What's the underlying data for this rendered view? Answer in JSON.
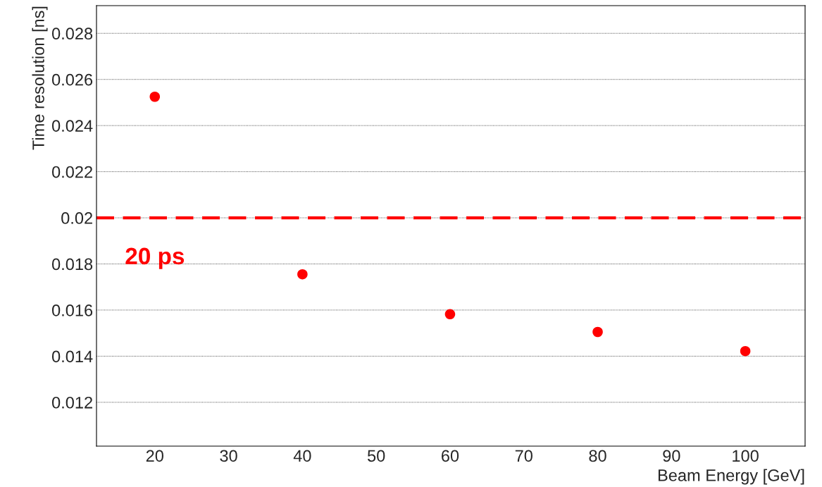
{
  "chart_data": {
    "type": "scatter",
    "xlabel": "Beam Energy [GeV]",
    "ylabel": "Time resolution [ns]",
    "x": [
      20,
      40,
      60,
      80,
      100
    ],
    "series": [
      {
        "color": "#ff0000",
        "values": [
          0.02525,
          0.01755,
          0.01582,
          0.01505,
          0.01422
        ]
      }
    ],
    "marker": "circle",
    "xlim": [
      12.1,
      108.1
    ],
    "xticks": [
      20,
      30,
      40,
      50,
      60,
      70,
      80,
      90,
      100
    ],
    "ylim": [
      0.0101,
      0.0292
    ],
    "yticks": [
      0.012,
      0.014,
      0.016,
      0.018,
      0.02,
      0.022,
      0.024,
      0.026,
      0.028
    ],
    "grid": "y",
    "ref_lines": [
      {
        "axis": "y",
        "value": 0.02,
        "label": "20 ps",
        "color": "#ff0000",
        "line_style": "dashed"
      }
    ]
  }
}
